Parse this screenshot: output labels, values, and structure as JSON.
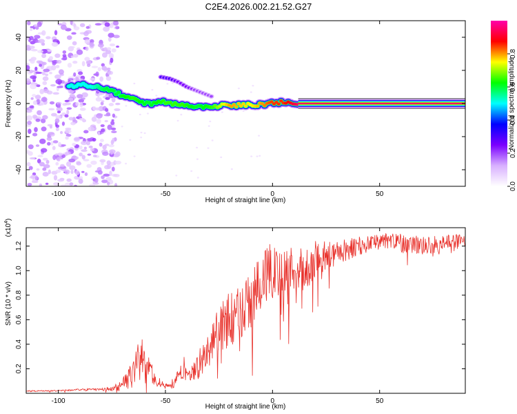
{
  "title": "C2E4.2026.002.21.52.G27",
  "chart_data": [
    {
      "type": "heatmap",
      "title": "C2E4.2026.002.21.52.G27",
      "xlabel": "Height of straight line (km)",
      "ylabel": "Frequency (Hz)",
      "xlim": [
        -115,
        90
      ],
      "ylim": [
        -50,
        50
      ],
      "xticks": [
        "-100",
        "-50",
        "0",
        "50"
      ],
      "xtick_values": [
        -100,
        -50,
        0,
        50
      ],
      "yticks": [
        "-40",
        "-20",
        "0",
        "20",
        "40"
      ],
      "ytick_values": [
        -40,
        -20,
        0,
        20,
        40
      ],
      "colorbar": {
        "label": "Normalized spectral amplitude",
        "range": [
          0,
          1
        ],
        "ticks": [
          "0.0",
          "0.2",
          "0.4",
          "0.6",
          "0.8"
        ],
        "tick_values": [
          0.0,
          0.2,
          0.4,
          0.6,
          0.8
        ],
        "colors": [
          "#ffffff",
          "#d8b0ff",
          "#7a00ff",
          "#0000ff",
          "#00ffff",
          "#00ff00",
          "#ffff00",
          "#ff0000",
          "#ff00aa"
        ]
      },
      "main_trace": {
        "x": [
          -95,
          -85,
          -78,
          -72,
          -65,
          -58,
          -50,
          -42,
          -35,
          -28,
          -20,
          -10,
          0,
          5,
          12,
          90
        ],
        "frequency": [
          11,
          11,
          9,
          6,
          3,
          0,
          1,
          -1,
          -2,
          -2,
          -1,
          -1,
          0,
          1,
          0,
          0
        ],
        "amplitude": [
          0.5,
          0.5,
          0.6,
          0.6,
          0.65,
          0.6,
          0.65,
          0.65,
          0.6,
          0.65,
          0.8,
          0.75,
          0.85,
          0.85,
          0.95,
          0.95
        ]
      },
      "secondary_trace": {
        "x": [
          -52,
          -48,
          -44,
          -40,
          -36,
          -32,
          -28
        ],
        "frequency": [
          16,
          15,
          13,
          10,
          8,
          6,
          4
        ],
        "amplitude": [
          0.3,
          0.3,
          0.25,
          0.25,
          0.2,
          0.2,
          0.2
        ]
      },
      "noise_region": {
        "x_range": [
          -115,
          -72
        ],
        "frequency_range": [
          -50,
          50
        ]
      }
    },
    {
      "type": "line",
      "xlabel": "Height of straight line (km)",
      "ylabel": "SNR (10 * v/v)",
      "scale_label": "(x10",
      "scale_exponent": "4",
      "xlim": [
        -115,
        90
      ],
      "ylim": [
        0,
        1.35
      ],
      "xticks": [
        "-100",
        "-50",
        "0",
        "50"
      ],
      "xtick_values": [
        -100,
        -50,
        0,
        50
      ],
      "yticks": [
        "0.2",
        "0.4",
        "0.6",
        "0.8",
        "1.0",
        "1.2"
      ],
      "ytick_values": [
        0.2,
        0.4,
        0.6,
        0.8,
        1.0,
        1.2
      ],
      "color": "#e8302a",
      "series": [
        {
          "name": "SNR",
          "x": [
            -115,
            -100,
            -90,
            -80,
            -72,
            -68,
            -64,
            -61,
            -58,
            -55,
            -52,
            -50,
            -47,
            -45,
            -43,
            -41,
            -38,
            -35,
            -32,
            -30,
            -27,
            -24,
            -20,
            -15,
            -10,
            -5,
            0,
            5,
            10,
            15,
            20,
            25,
            30,
            40,
            50,
            60,
            70,
            80,
            90
          ],
          "y": [
            0.02,
            0.02,
            0.03,
            0.03,
            0.05,
            0.1,
            0.18,
            0.3,
            0.2,
            0.12,
            0.08,
            0.06,
            0.08,
            0.1,
            0.18,
            0.22,
            0.15,
            0.2,
            0.3,
            0.4,
            0.48,
            0.55,
            0.6,
            0.65,
            0.75,
            0.9,
            1.0,
            0.95,
            1.05,
            1.0,
            1.1,
            1.12,
            1.15,
            1.2,
            1.25,
            1.22,
            1.2,
            1.22,
            1.25
          ],
          "noise_amplitude": [
            0.005,
            0.005,
            0.008,
            0.01,
            0.03,
            0.08,
            0.15,
            0.22,
            0.12,
            0.06,
            0.04,
            0.03,
            0.04,
            0.06,
            0.1,
            0.08,
            0.06,
            0.12,
            0.18,
            0.2,
            0.2,
            0.22,
            0.22,
            0.22,
            0.25,
            0.25,
            0.25,
            0.22,
            0.2,
            0.18,
            0.15,
            0.12,
            0.1,
            0.08,
            0.06,
            0.08,
            0.08,
            0.07,
            0.06
          ]
        }
      ]
    }
  ]
}
